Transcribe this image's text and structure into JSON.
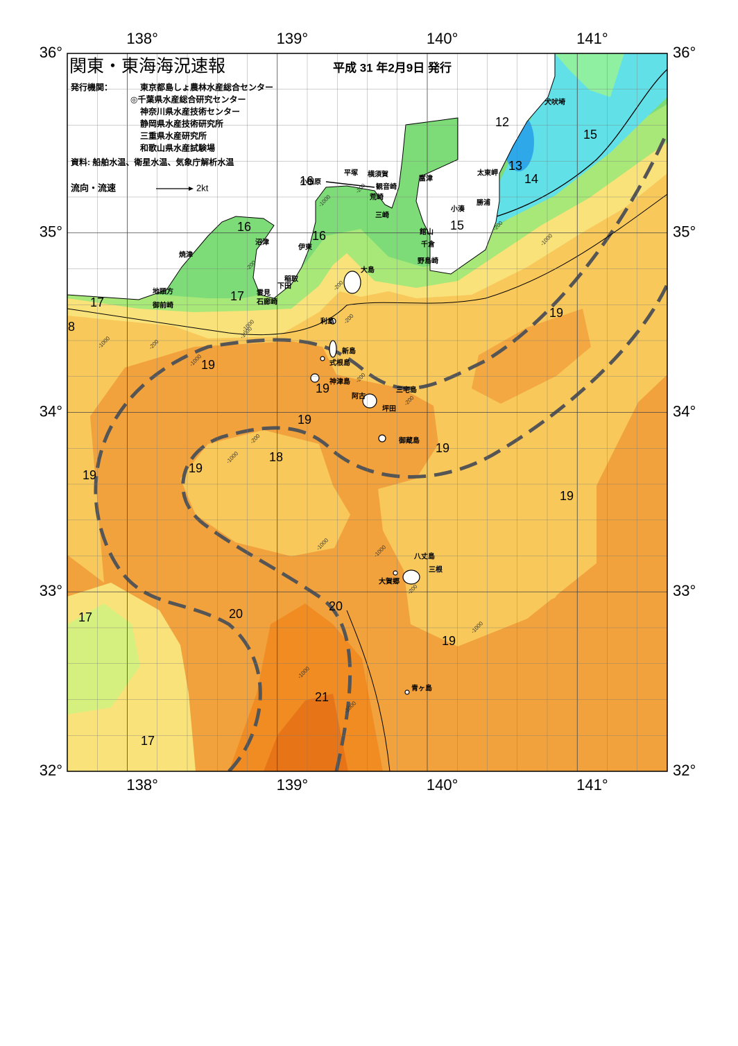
{
  "header": {
    "title": "関東・東海海況速報",
    "issued": "平成 31 年2月9日 発行"
  },
  "agencies_label": "発行機関：",
  "agencies": [
    "東京都島しょ農林水産総合センター",
    "◎千葉県水産総合研究センター",
    "神奈川県水産技術センター",
    "静岡県水産技術研究所",
    "三重県水産研究所",
    "和歌山県水産試験場"
  ],
  "source": "資料: 船舶水温、衛星水温、気象庁解析水温",
  "legend": {
    "label": "流向・流速",
    "scale": "2kt"
  },
  "lon_labels": [
    "138°",
    "139°",
    "140°",
    "141°"
  ],
  "lat_labels": [
    "36°",
    "35°",
    "34°",
    "33°",
    "32°"
  ],
  "places": [
    "犬吠埼",
    "太東岬",
    "勝浦",
    "小湊",
    "館山",
    "千倉",
    "野島崎",
    "富津",
    "観音崎",
    "横須賀",
    "平塚",
    "荒崎",
    "三崎",
    "小田原",
    "沼津",
    "伊東",
    "焼津",
    "稲取",
    "下田",
    "雲見",
    "石廊崎",
    "地頭方",
    "御前崎",
    "大島",
    "利島",
    "新島",
    "式根島",
    "神津島",
    "三宅島",
    "阿古",
    "坪田",
    "御蔵島",
    "八丈島",
    "三根",
    "大賀郷",
    "青ヶ島"
  ],
  "temperature_labels": [
    12,
    13,
    14,
    15,
    15,
    16,
    16,
    16,
    17,
    17,
    8,
    19,
    19,
    19,
    19,
    19,
    19,
    19,
    18,
    19,
    17,
    20,
    20,
    19,
    21,
    17
  ],
  "depth_labels": [
    "-200",
    "-1000"
  ]
}
